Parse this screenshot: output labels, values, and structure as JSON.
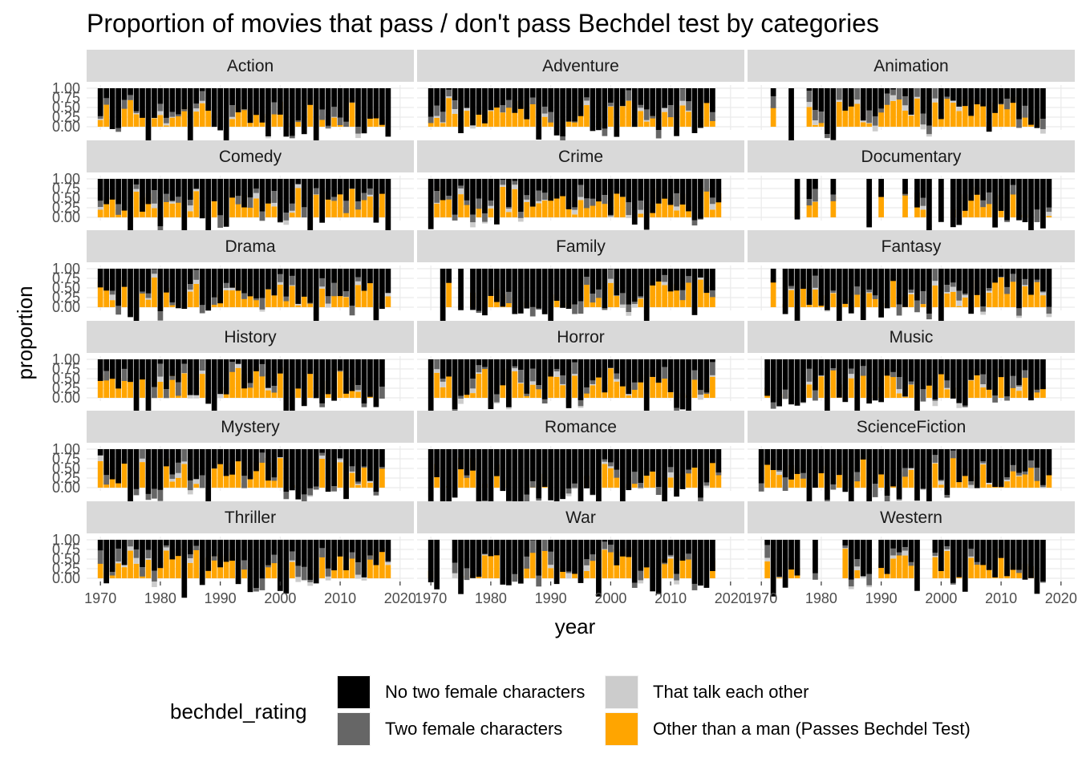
{
  "chart_data": {
    "type": "bar",
    "stacked": true,
    "title": "Proportion of movies that pass / don't pass Bechdel test by categories",
    "xlabel": "year",
    "ylabel": "proportion",
    "ylim": [
      0,
      1
    ],
    "xlim": [
      1970,
      2020
    ],
    "y_ticks": [
      "0.00",
      "0.25",
      "0.50",
      "0.75",
      "1.00"
    ],
    "x_ticks": [
      "1970",
      "1980",
      "1990",
      "2000",
      "2010",
      "2020"
    ],
    "grid": true,
    "legend": {
      "title": "bechdel_rating",
      "position": "bottom",
      "entries": [
        {
          "label": "No two female characters",
          "color": "#000000"
        },
        {
          "label": "Two female characters",
          "color": "#666666"
        },
        {
          "label": "That talk each other",
          "color": "#cccccc"
        },
        {
          "label": "Other than a man (Passes Bechdel Test)",
          "color": "#ffa500"
        }
      ]
    },
    "facets": [
      {
        "name": "Action",
        "years": [
          1970,
          1971,
          1972,
          1973,
          1974,
          1975,
          1976,
          1977,
          1978,
          1979,
          1980,
          1981,
          1982,
          1983,
          1984,
          1985,
          1986,
          1987,
          1988,
          1989,
          1990,
          1991,
          1992,
          1993,
          1994,
          1995,
          1996,
          1997,
          1998,
          1999,
          2000,
          2001,
          2002,
          2003,
          2004,
          2005,
          2006,
          2007,
          2008,
          2009,
          2010,
          2011,
          2012,
          2013,
          2014,
          2015,
          2016,
          2017,
          2018
        ]
      },
      {
        "name": "Adventure",
        "years": [
          1970,
          1971,
          1972,
          1973,
          1974,
          1975,
          1976,
          1977,
          1978,
          1979,
          1980,
          1981,
          1982,
          1983,
          1984,
          1985,
          1986,
          1987,
          1988,
          1989,
          1990,
          1991,
          1992,
          1993,
          1994,
          1995,
          1996,
          1997,
          1998,
          1999,
          2000,
          2001,
          2002,
          2003,
          2004,
          2005,
          2006,
          2007,
          2008,
          2009,
          2010,
          2011,
          2012,
          2013,
          2014,
          2015,
          2016,
          2017
        ]
      },
      {
        "name": "Animation",
        "years": [
          1972,
          1975,
          1978,
          1979,
          1980,
          1981,
          1982,
          1983,
          1984,
          1985,
          1986,
          1987,
          1988,
          1989,
          1990,
          1991,
          1992,
          1993,
          1994,
          1995,
          1996,
          1997,
          1998,
          1999,
          2000,
          2001,
          2002,
          2003,
          2004,
          2005,
          2006,
          2007,
          2008,
          2009,
          2010,
          2011,
          2012,
          2013,
          2014,
          2015,
          2016,
          2017
        ]
      },
      {
        "name": "Comedy",
        "years": [
          1970,
          1971,
          1972,
          1973,
          1974,
          1975,
          1976,
          1977,
          1978,
          1979,
          1980,
          1981,
          1982,
          1983,
          1984,
          1985,
          1986,
          1987,
          1988,
          1989,
          1990,
          1991,
          1992,
          1993,
          1994,
          1995,
          1996,
          1997,
          1998,
          1999,
          2000,
          2001,
          2002,
          2003,
          2004,
          2005,
          2006,
          2007,
          2008,
          2009,
          2010,
          2011,
          2012,
          2013,
          2014,
          2015,
          2016,
          2017,
          2018
        ]
      },
      {
        "name": "Crime",
        "years": [
          1970,
          1971,
          1972,
          1973,
          1974,
          1975,
          1976,
          1977,
          1978,
          1979,
          1980,
          1981,
          1982,
          1983,
          1984,
          1985,
          1986,
          1987,
          1988,
          1989,
          1990,
          1991,
          1992,
          1993,
          1994,
          1995,
          1996,
          1997,
          1998,
          1999,
          2000,
          2001,
          2002,
          2003,
          2004,
          2005,
          2006,
          2007,
          2008,
          2009,
          2010,
          2011,
          2012,
          2013,
          2014,
          2015,
          2016,
          2017,
          2018
        ]
      },
      {
        "name": "Documentary",
        "years": [
          1976,
          1978,
          1979,
          1982,
          1988,
          1990,
          1994,
          1996,
          1997,
          1998,
          2000,
          2002,
          2003,
          2004,
          2005,
          2006,
          2007,
          2008,
          2009,
          2010,
          2011,
          2012,
          2013,
          2014,
          2015,
          2016,
          2017,
          2018
        ]
      },
      {
        "name": "Drama",
        "years": [
          1970,
          1971,
          1972,
          1973,
          1974,
          1975,
          1976,
          1977,
          1978,
          1979,
          1980,
          1981,
          1982,
          1983,
          1984,
          1985,
          1986,
          1987,
          1988,
          1989,
          1990,
          1991,
          1992,
          1993,
          1994,
          1995,
          1996,
          1997,
          1998,
          1999,
          2000,
          2001,
          2002,
          2003,
          2004,
          2005,
          2006,
          2007,
          2008,
          2009,
          2010,
          2011,
          2012,
          2013,
          2014,
          2015,
          2016,
          2017,
          2018
        ]
      },
      {
        "name": "Family",
        "years": [
          1972,
          1973,
          1975,
          1977,
          1978,
          1979,
          1980,
          1981,
          1982,
          1983,
          1984,
          1985,
          1986,
          1987,
          1988,
          1989,
          1990,
          1991,
          1992,
          1993,
          1994,
          1995,
          1996,
          1997,
          1998,
          1999,
          2000,
          2001,
          2002,
          2003,
          2004,
          2005,
          2006,
          2007,
          2008,
          2009,
          2010,
          2011,
          2012,
          2013,
          2014,
          2015,
          2016,
          2017
        ]
      },
      {
        "name": "Fantasy",
        "years": [
          1972,
          1974,
          1975,
          1976,
          1977,
          1978,
          1979,
          1980,
          1981,
          1982,
          1983,
          1984,
          1985,
          1986,
          1987,
          1988,
          1989,
          1990,
          1991,
          1992,
          1993,
          1994,
          1995,
          1996,
          1997,
          1998,
          1999,
          2000,
          2001,
          2002,
          2003,
          2004,
          2005,
          2006,
          2007,
          2008,
          2009,
          2010,
          2011,
          2012,
          2013,
          2014,
          2015,
          2016,
          2017,
          2018
        ]
      },
      {
        "name": "History",
        "years": [
          1970,
          1971,
          1972,
          1973,
          1974,
          1975,
          1976,
          1977,
          1978,
          1979,
          1980,
          1981,
          1982,
          1983,
          1984,
          1985,
          1986,
          1987,
          1988,
          1989,
          1990,
          1991,
          1992,
          1993,
          1994,
          1995,
          1996,
          1997,
          1998,
          1999,
          2000,
          2001,
          2002,
          2003,
          2004,
          2005,
          2006,
          2007,
          2008,
          2009,
          2010,
          2011,
          2012,
          2013,
          2014,
          2015,
          2016,
          2017
        ]
      },
      {
        "name": "Horror",
        "years": [
          1970,
          1971,
          1972,
          1973,
          1974,
          1975,
          1976,
          1977,
          1978,
          1979,
          1980,
          1981,
          1982,
          1983,
          1984,
          1985,
          1986,
          1987,
          1988,
          1989,
          1990,
          1991,
          1992,
          1993,
          1994,
          1995,
          1996,
          1997,
          1998,
          1999,
          2000,
          2001,
          2002,
          2003,
          2004,
          2005,
          2006,
          2007,
          2008,
          2009,
          2010,
          2011,
          2012,
          2013,
          2014,
          2015,
          2016,
          2017
        ]
      },
      {
        "name": "Music",
        "years": [
          1971,
          1972,
          1973,
          1974,
          1975,
          1976,
          1977,
          1978,
          1979,
          1980,
          1981,
          1982,
          1983,
          1984,
          1985,
          1986,
          1987,
          1988,
          1989,
          1990,
          1991,
          1992,
          1993,
          1994,
          1995,
          1996,
          1997,
          1998,
          1999,
          2000,
          2001,
          2002,
          2003,
          2004,
          2005,
          2006,
          2007,
          2008,
          2009,
          2010,
          2011,
          2012,
          2013,
          2014,
          2015,
          2016,
          2017
        ]
      },
      {
        "name": "Mystery",
        "years": [
          1970,
          1971,
          1972,
          1973,
          1974,
          1975,
          1976,
          1977,
          1978,
          1979,
          1980,
          1981,
          1982,
          1983,
          1984,
          1985,
          1986,
          1987,
          1988,
          1989,
          1990,
          1991,
          1992,
          1993,
          1994,
          1995,
          1996,
          1997,
          1998,
          1999,
          2000,
          2001,
          2002,
          2003,
          2004,
          2005,
          2006,
          2007,
          2008,
          2009,
          2010,
          2011,
          2012,
          2013,
          2014,
          2015,
          2016,
          2017
        ]
      },
      {
        "name": "Romance",
        "years": [
          1970,
          1971,
          1972,
          1973,
          1974,
          1975,
          1976,
          1977,
          1978,
          1979,
          1980,
          1981,
          1982,
          1983,
          1984,
          1985,
          1986,
          1987,
          1988,
          1989,
          1990,
          1991,
          1992,
          1993,
          1994,
          1995,
          1996,
          1997,
          1998,
          1999,
          2000,
          2001,
          2002,
          2003,
          2004,
          2005,
          2006,
          2007,
          2008,
          2009,
          2010,
          2011,
          2012,
          2013,
          2014,
          2015,
          2016,
          2017,
          2018
        ]
      },
      {
        "name": "ScienceFiction",
        "years": [
          1970,
          1971,
          1972,
          1973,
          1974,
          1975,
          1976,
          1977,
          1978,
          1979,
          1980,
          1981,
          1982,
          1983,
          1984,
          1985,
          1986,
          1987,
          1988,
          1989,
          1990,
          1991,
          1992,
          1993,
          1994,
          1995,
          1996,
          1997,
          1998,
          1999,
          2000,
          2001,
          2002,
          2003,
          2004,
          2005,
          2006,
          2007,
          2008,
          2009,
          2010,
          2011,
          2012,
          2013,
          2014,
          2015,
          2016,
          2017,
          2018
        ]
      },
      {
        "name": "Thriller",
        "years": [
          1970,
          1971,
          1972,
          1973,
          1974,
          1975,
          1976,
          1977,
          1978,
          1979,
          1980,
          1981,
          1982,
          1983,
          1984,
          1985,
          1986,
          1987,
          1988,
          1989,
          1990,
          1991,
          1992,
          1993,
          1994,
          1995,
          1996,
          1997,
          1998,
          1999,
          2000,
          2001,
          2002,
          2003,
          2004,
          2005,
          2006,
          2007,
          2008,
          2009,
          2010,
          2011,
          2012,
          2013,
          2014,
          2015,
          2016,
          2017,
          2018
        ]
      },
      {
        "name": "War",
        "years": [
          1970,
          1971,
          1974,
          1975,
          1976,
          1977,
          1978,
          1979,
          1980,
          1981,
          1982,
          1983,
          1984,
          1985,
          1986,
          1987,
          1988,
          1989,
          1990,
          1991,
          1992,
          1993,
          1994,
          1995,
          1996,
          1997,
          1998,
          1999,
          2000,
          2001,
          2002,
          2003,
          2004,
          2005,
          2006,
          2007,
          2008,
          2009,
          2010,
          2011,
          2012,
          2013,
          2014,
          2015,
          2016,
          2017
        ]
      },
      {
        "name": "Western",
        "years": [
          1971,
          1972,
          1973,
          1974,
          1975,
          1976,
          1979,
          1984,
          1985,
          1986,
          1987,
          1988,
          1990,
          1991,
          1992,
          1993,
          1994,
          1995,
          1996,
          1999,
          2000,
          2001,
          2002,
          2003,
          2004,
          2005,
          2006,
          2007,
          2008,
          2009,
          2010,
          2011,
          2012,
          2013,
          2014,
          2015,
          2016,
          2017
        ]
      }
    ]
  }
}
